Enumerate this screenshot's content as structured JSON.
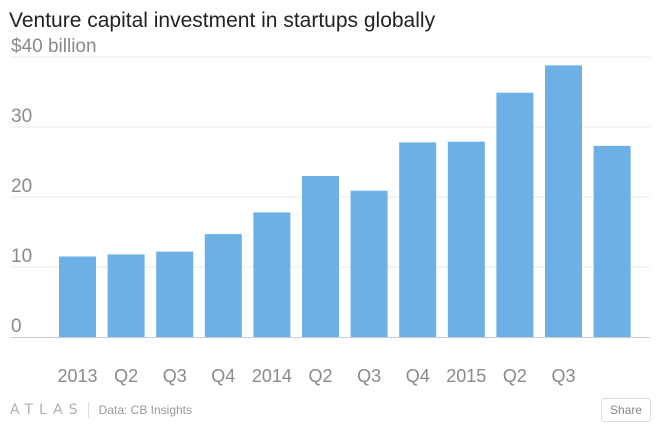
{
  "title": "Venture capital investment in startups globally",
  "footer": {
    "logo": "ATLAS",
    "source": "Data: CB Insights",
    "share_label": "Share"
  },
  "colors": {
    "bar": "#6cb0e6",
    "grid": "#e8e8e8",
    "axis": "#cccccc",
    "tick_text": "#8a8a8a"
  },
  "chart_data": {
    "type": "bar",
    "categories": [
      "2013",
      "Q2",
      "Q3",
      "Q4",
      "2014",
      "Q2",
      "Q3",
      "Q4",
      "2015",
      "Q2",
      "Q3",
      ""
    ],
    "values": [
      11.5,
      11.8,
      12.2,
      14.7,
      17.8,
      23.0,
      20.9,
      27.8,
      27.9,
      34.9,
      38.8,
      27.3
    ],
    "y_ticks": [
      0,
      10,
      20,
      30,
      40
    ],
    "y_tick_labels": [
      "0",
      "10",
      "20",
      "30",
      "$40 billion"
    ],
    "ylim": [
      0,
      40
    ],
    "grid": true,
    "legend": "none"
  }
}
